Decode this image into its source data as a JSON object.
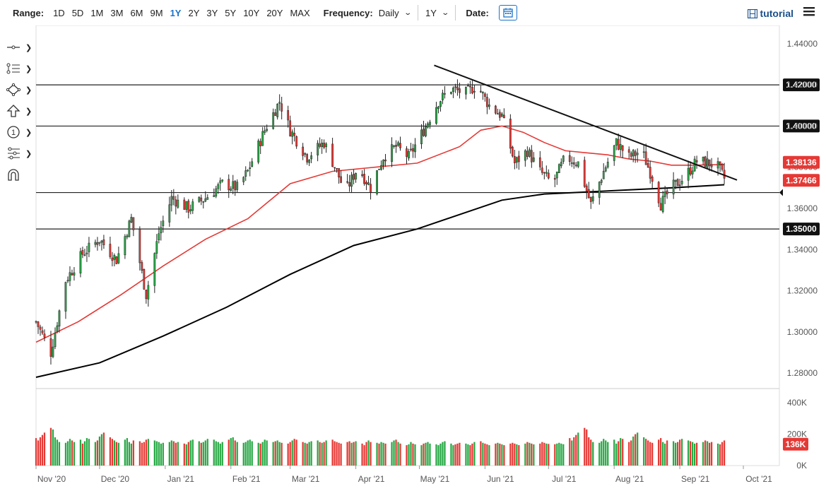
{
  "toolbar": {
    "range_label": "Range:",
    "ranges": [
      "1D",
      "5D",
      "1M",
      "3M",
      "6M",
      "9M",
      "1Y",
      "2Y",
      "3Y",
      "5Y",
      "10Y",
      "20Y",
      "MAX"
    ],
    "active_range": "1Y",
    "frequency_label": "Frequency:",
    "frequency_value": "Daily",
    "period_value": "1Y",
    "date_label": "Date:",
    "tutorial_label": "tutorial"
  },
  "left_tools": [
    "crosshair-tool-icon",
    "fibonacci-tool-icon",
    "shapes-tool-icon",
    "arrow-tool-icon",
    "annotation-tool-icon",
    "measure-tool-icon",
    "magnet-tool-icon"
  ],
  "colors": {
    "up": "#27a844",
    "down": "#e53935",
    "ma50": "#e53935",
    "ma200": "#000000",
    "accent": "#1a73c8"
  },
  "chart_data": {
    "type": "candlestick",
    "y_ticks": [
      "1.44000",
      "1.42000",
      "1.40000",
      "1.38000",
      "1.36000",
      "1.34000",
      "1.32000",
      "1.30000",
      "1.28000"
    ],
    "ylim": [
      1.2725,
      1.4475
    ],
    "x_ticks": [
      {
        "label": "Nov '20",
        "day": 0
      },
      {
        "label": "Dec '20",
        "day": 30
      },
      {
        "label": "Jan '21",
        "day": 61
      },
      {
        "label": "Feb '21",
        "day": 92
      },
      {
        "label": "Mar '21",
        "day": 120
      },
      {
        "label": "Apr '21",
        "day": 151
      },
      {
        "label": "May '21",
        "day": 181
      },
      {
        "label": "Jun '21",
        "day": 212
      },
      {
        "label": "Jul '21",
        "day": 242
      },
      {
        "label": "Aug '21",
        "day": 273
      },
      {
        "label": "Sep '21",
        "day": 304
      },
      {
        "label": "Oct '21",
        "day": 334
      }
    ],
    "horizontal_levels": [
      {
        "value": 1.42,
        "label": "1.42000"
      },
      {
        "value": 1.4,
        "label": "1.40000"
      },
      {
        "value": 1.3677,
        "label": ""
      },
      {
        "value": 1.35,
        "label": "1.35000"
      }
    ],
    "price_tags": [
      {
        "value": 1.38136,
        "label": "1.38136",
        "color": "#e53935"
      },
      {
        "value": 1.37466,
        "label": "1.37466",
        "color": "#e53935"
      }
    ],
    "trendline": {
      "from": {
        "day": 188,
        "value": 1.4295
      },
      "to": {
        "day": 331,
        "value": 1.3738
      }
    },
    "anchors": [
      [
        0,
        1.305
      ],
      [
        7,
        1.29
      ],
      [
        14,
        1.325
      ],
      [
        22,
        1.338
      ],
      [
        30,
        1.345
      ],
      [
        38,
        1.335
      ],
      [
        45,
        1.355
      ],
      [
        52,
        1.318
      ],
      [
        58,
        1.348
      ],
      [
        64,
        1.365
      ],
      [
        72,
        1.36
      ],
      [
        80,
        1.365
      ],
      [
        88,
        1.372
      ],
      [
        95,
        1.37
      ],
      [
        100,
        1.378
      ],
      [
        108,
        1.398
      ],
      [
        115,
        1.412
      ],
      [
        120,
        1.398
      ],
      [
        128,
        1.385
      ],
      [
        136,
        1.392
      ],
      [
        142,
        1.378
      ],
      [
        146,
        1.368
      ],
      [
        152,
        1.38
      ],
      [
        158,
        1.37
      ],
      [
        164,
        1.385
      ],
      [
        170,
        1.39
      ],
      [
        176,
        1.385
      ],
      [
        183,
        1.398
      ],
      [
        190,
        1.412
      ],
      [
        196,
        1.418
      ],
      [
        203,
        1.416
      ],
      [
        208,
        1.42
      ],
      [
        214,
        1.41
      ],
      [
        220,
        1.405
      ],
      [
        226,
        1.382
      ],
      [
        232,
        1.388
      ],
      [
        238,
        1.378
      ],
      [
        244,
        1.372
      ],
      [
        250,
        1.385
      ],
      [
        256,
        1.382
      ],
      [
        262,
        1.362
      ],
      [
        268,
        1.378
      ],
      [
        274,
        1.392
      ],
      [
        280,
        1.385
      ],
      [
        286,
        1.388
      ],
      [
        291,
        1.375
      ],
      [
        295,
        1.362
      ],
      [
        300,
        1.37
      ],
      [
        306,
        1.375
      ],
      [
        312,
        1.383
      ],
      [
        318,
        1.382
      ],
      [
        322,
        1.38
      ],
      [
        325,
        1.3747
      ]
    ],
    "ma50_points": [
      [
        0,
        1.295
      ],
      [
        20,
        1.305
      ],
      [
        40,
        1.318
      ],
      [
        60,
        1.332
      ],
      [
        80,
        1.345
      ],
      [
        100,
        1.355
      ],
      [
        120,
        1.372
      ],
      [
        140,
        1.378
      ],
      [
        160,
        1.38
      ],
      [
        180,
        1.382
      ],
      [
        200,
        1.39
      ],
      [
        210,
        1.398
      ],
      [
        220,
        1.4
      ],
      [
        230,
        1.397
      ],
      [
        240,
        1.392
      ],
      [
        250,
        1.388
      ],
      [
        260,
        1.387
      ],
      [
        270,
        1.386
      ],
      [
        280,
        1.384
      ],
      [
        290,
        1.383
      ],
      [
        300,
        1.381
      ],
      [
        310,
        1.381
      ],
      [
        325,
        1.3813
      ]
    ],
    "ma200_points": [
      [
        0,
        1.278
      ],
      [
        30,
        1.285
      ],
      [
        60,
        1.298
      ],
      [
        90,
        1.312
      ],
      [
        120,
        1.328
      ],
      [
        150,
        1.342
      ],
      [
        180,
        1.35
      ],
      [
        200,
        1.357
      ],
      [
        220,
        1.364
      ],
      [
        240,
        1.367
      ],
      [
        260,
        1.368
      ],
      [
        280,
        1.369
      ],
      [
        300,
        1.37
      ],
      [
        325,
        1.3715
      ]
    ],
    "volume": {
      "ylim": [
        0,
        450
      ],
      "ticks": [
        "400K",
        "200K",
        "0K"
      ],
      "last_label": "136K",
      "values": [
        175,
        160,
        180,
        195,
        210,
        240,
        230,
        180,
        165,
        150,
        145,
        155,
        170,
        160,
        150,
        165,
        140,
        155,
        175,
        170,
        150,
        160,
        185,
        200,
        210,
        180,
        170,
        160,
        150,
        145,
        165,
        175,
        150,
        140,
        160,
        155,
        145,
        150,
        165,
        170,
        160,
        155,
        150,
        140,
        145,
        150,
        160,
        155,
        145,
        150,
        140,
        135,
        150,
        160,
        165,
        155,
        145,
        150,
        160,
        170,
        165,
        155,
        150,
        140,
        150,
        165,
        175,
        180,
        160,
        150,
        145,
        150,
        160,
        165,
        155,
        145,
        140,
        150,
        165,
        160,
        150,
        155,
        160,
        150,
        145,
        140,
        150,
        160,
        170,
        165,
        150,
        145,
        140,
        150,
        155,
        160,
        150,
        145,
        150,
        160,
        165,
        155,
        150,
        145,
        140,
        150,
        155,
        145,
        150,
        155,
        140,
        130,
        150,
        160,
        150,
        145,
        140,
        150,
        145,
        140,
        150,
        160,
        165,
        150,
        140,
        130,
        135,
        150,
        140,
        135,
        130,
        140,
        145,
        150,
        140,
        135,
        130,
        140,
        150,
        155,
        140,
        130,
        135,
        140,
        145,
        140,
        135,
        130,
        140,
        150,
        155,
        145,
        140,
        135,
        130,
        140,
        145,
        140,
        135,
        130,
        140,
        145,
        140,
        135,
        130,
        140,
        150,
        145,
        140,
        135,
        140,
        150,
        145,
        140,
        138,
        136,
        140,
        145,
        140,
        136
      ]
    }
  }
}
